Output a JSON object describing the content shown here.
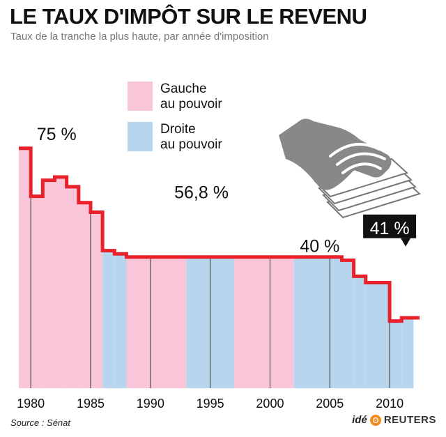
{
  "title": "LE TAUX D'IMPÔT SUR LE REVENU",
  "subtitle": "Taux de la tranche la plus haute, par année d'imposition",
  "source": "Source : Sénat",
  "credit": {
    "ide": "idé",
    "reuters": "REUTERS"
  },
  "colors": {
    "gauche": "#f8c6d8",
    "droite": "#b7d6ee",
    "line": "#e8212b"
  },
  "chart_data": {
    "type": "line",
    "xlim": [
      1979,
      2012.5
    ],
    "ylim": [
      0,
      100
    ],
    "x_ticks": [
      1980,
      1985,
      1990,
      1995,
      2000,
      2005,
      2010
    ],
    "legend": [
      {
        "label": "Gauche\nau pouvoir",
        "party": "gauche"
      },
      {
        "label": "Droite\nau pouvoir",
        "party": "droite"
      }
    ],
    "periods": [
      {
        "start": 1979,
        "end": 1986,
        "party": "gauche"
      },
      {
        "start": 1986,
        "end": 1988,
        "party": "droite"
      },
      {
        "start": 1988,
        "end": 1993,
        "party": "gauche"
      },
      {
        "start": 1993,
        "end": 1997,
        "party": "droite"
      },
      {
        "start": 1997,
        "end": 2002,
        "party": "gauche"
      },
      {
        "start": 2002,
        "end": 2012,
        "party": "droite"
      }
    ],
    "series": [
      {
        "values": [
          {
            "x": 1979,
            "y": 75
          },
          {
            "x": 1980,
            "y": 60
          },
          {
            "x": 1981,
            "y": 65
          },
          {
            "x": 1982,
            "y": 66
          },
          {
            "x": 1983,
            "y": 63
          },
          {
            "x": 1984,
            "y": 58
          },
          {
            "x": 1985,
            "y": 55
          },
          {
            "x": 1986,
            "y": 43
          },
          {
            "x": 1987,
            "y": 42
          },
          {
            "x": 1988,
            "y": 41
          },
          {
            "x": 2005,
            "y": 41
          },
          {
            "x": 2006,
            "y": 40
          },
          {
            "x": 2007,
            "y": 35
          },
          {
            "x": 2008,
            "y": 33
          },
          {
            "x": 2010,
            "y": 21
          },
          {
            "x": 2011,
            "y": 22
          }
        ]
      }
    ],
    "annotations": [
      {
        "text": "75 %",
        "x": 1980.5,
        "y": 75
      },
      {
        "text": "56,8 %",
        "x": 1992,
        "y": 56.8
      },
      {
        "text": "40 %",
        "x": 2002.5,
        "y": 40
      },
      {
        "text": "41 %",
        "x": 2010,
        "y": 41,
        "callout": true
      }
    ]
  }
}
